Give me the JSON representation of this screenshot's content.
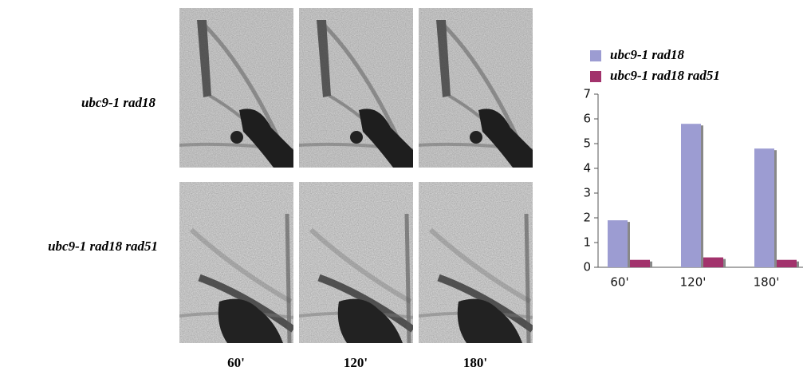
{
  "row_labels": [
    "ubc9-1 rad18",
    "ubc9-1 rad18 rad51"
  ],
  "column_labels": [
    "60'",
    "120'",
    "180'"
  ],
  "chart_data": {
    "type": "bar",
    "categories": [
      "60'",
      "120'",
      "180'"
    ],
    "series": [
      {
        "name": "ubc9-1 rad18",
        "color": "#9c9cd2",
        "values": [
          1.9,
          5.8,
          4.8
        ]
      },
      {
        "name": "ubc9-1 rad18 rad51",
        "color": "#a2326c",
        "values": [
          0.3,
          0.4,
          0.3
        ]
      }
    ],
    "ylim": [
      0,
      7
    ],
    "yticks": [
      0,
      1,
      2,
      3,
      4,
      5,
      6,
      7
    ],
    "grid": false,
    "legend": "top"
  }
}
